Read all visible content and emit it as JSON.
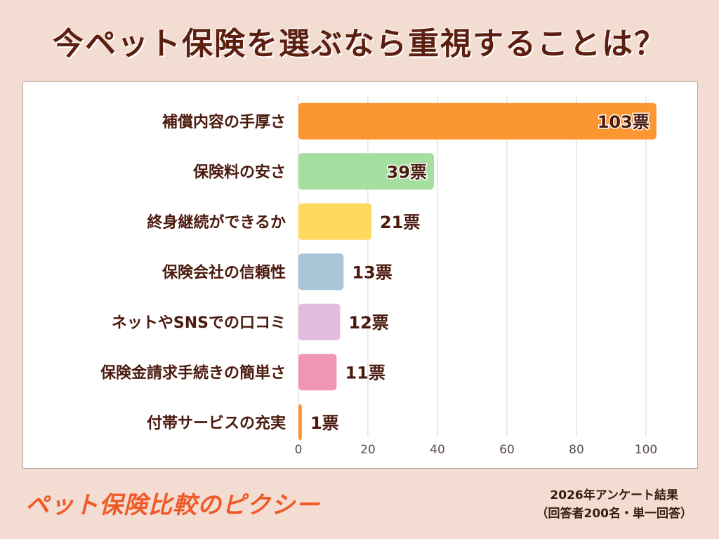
{
  "title": "今ペット保険を選ぶなら重視することは？",
  "brand": "ペット保険比較のピクシー",
  "footnote": {
    "line1": "2026年アンケート結果",
    "line2": "（回答者200名・単一回答）"
  },
  "chart_data": {
    "type": "bar",
    "orientation": "horizontal",
    "categories": [
      "補償内容の手厚さ",
      "保険料の安さ",
      "終身継続ができるか",
      "保険会社の信頼性",
      "ネットやSNSでの口コミ",
      "保険金請求手続きの簡単さ",
      "付帯サービスの充実"
    ],
    "values": [
      103,
      39,
      21,
      13,
      12,
      11,
      1
    ],
    "data_labels": [
      "103票",
      "39票",
      "21票",
      "13票",
      "12票",
      "11票",
      "1票"
    ],
    "colors": [
      "#fb9630",
      "#a5dfa0",
      "#ffd95e",
      "#aac4d8",
      "#e4bcdf",
      "#ef97b2",
      "#fb9630"
    ],
    "xlim": [
      0,
      110
    ],
    "xticks": [
      0,
      20,
      40,
      60,
      80,
      100
    ],
    "grid": true
  }
}
